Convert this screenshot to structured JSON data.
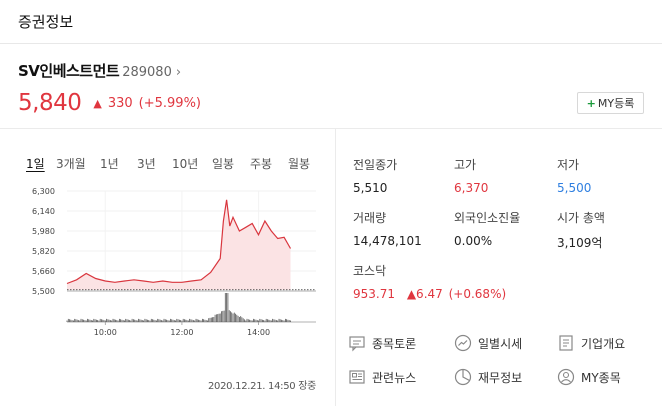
{
  "header": {
    "title": "증권정보"
  },
  "stock": {
    "name": "SV인베스트먼트",
    "code": "289080",
    "chevron": "›",
    "price": "5,840",
    "change_arrow": "▲",
    "change_value": "330",
    "change_percent": "(+5.99%)",
    "my_button_plus": "+",
    "my_button_label": "MY등록"
  },
  "tabs": [
    "1일",
    "3개월",
    "1년",
    "3년",
    "10년",
    "일봉",
    "주봉",
    "월봉"
  ],
  "chart": {
    "y_ticks": [
      "6,300",
      "6,140",
      "5,980",
      "5,820",
      "5,660",
      "5,500"
    ],
    "x_ticks": [
      "10:00",
      "12:00",
      "14:00"
    ]
  },
  "chart_data": {
    "type": "area",
    "title": "",
    "xlabel": "",
    "ylabel": "",
    "ylim": [
      5500,
      6300
    ],
    "xlim": [
      "09:00",
      "15:30"
    ],
    "series": [
      {
        "x": [
          "09:00",
          "09:15",
          "09:30",
          "09:45",
          "10:00",
          "10:15",
          "10:30",
          "10:45",
          "11:00",
          "11:15",
          "11:30",
          "11:45",
          "12:00",
          "12:15",
          "12:30",
          "12:45",
          "13:00",
          "13:05",
          "13:10",
          "13:15",
          "13:20",
          "13:30",
          "13:40",
          "13:50",
          "14:00",
          "14:10",
          "14:20",
          "14:30",
          "14:40",
          "14:50"
        ],
        "y": [
          5560,
          5590,
          5640,
          5600,
          5580,
          5570,
          5580,
          5590,
          5580,
          5570,
          5580,
          5570,
          5570,
          5580,
          5590,
          5650,
          5760,
          6060,
          6230,
          6020,
          6090,
          5980,
          6010,
          6040,
          5950,
          6060,
          5980,
          5920,
          5930,
          5840
        ]
      }
    ],
    "reference_line": 5510,
    "volume_spike_time": "13:10"
  },
  "timestamp": "2020.12.21. 14:50 장중",
  "stats": [
    {
      "label": "전일종가",
      "value": "5,510",
      "color": "#222222"
    },
    {
      "label": "고가",
      "value": "6,370",
      "color": "#e0363f"
    },
    {
      "label": "저가",
      "value": "5,500",
      "color": "#2f7fe0"
    },
    {
      "label": "거래량",
      "value": "14,478,101",
      "color": "#222222"
    },
    {
      "label": "외국인소진율",
      "value": "0.00%",
      "color": "#222222"
    },
    {
      "label": "시가 총액",
      "value": "3,109억",
      "color": "#222222"
    }
  ],
  "index": {
    "label": "코스닥",
    "value": "953.71",
    "change": "▲6.47",
    "change_percent": "(+0.68%)"
  },
  "links": [
    {
      "label": "종목토론",
      "icon": "discussion-icon"
    },
    {
      "label": "일별시세",
      "icon": "trend-icon"
    },
    {
      "label": "기업개요",
      "icon": "document-icon"
    },
    {
      "label": "관련뉴스",
      "icon": "news-icon"
    },
    {
      "label": "재무정보",
      "icon": "pie-chart-icon"
    },
    {
      "label": "MY종목",
      "icon": "person-icon"
    }
  ],
  "colors": {
    "up": "#e0363f",
    "down": "#2f7fe0",
    "accent_green": "#1a9a3a"
  }
}
